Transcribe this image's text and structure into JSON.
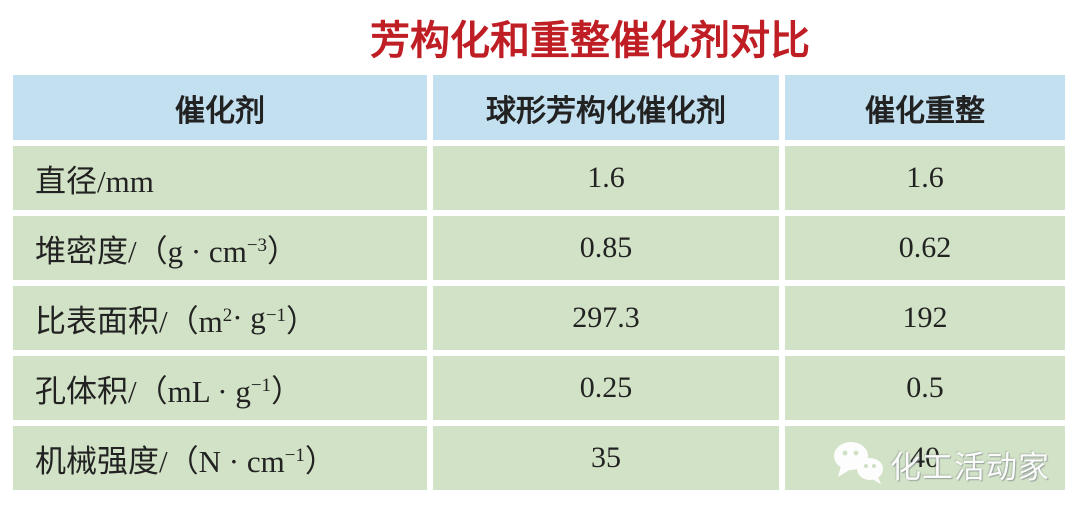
{
  "page": {
    "title": "芳构化和重整催化剂对比",
    "title_color": "#bf1e24",
    "header_bg": "#c3e0f0",
    "row_bg": "#d2e2c6"
  },
  "table": {
    "columns": [
      "催化剂",
      "球形芳构化催化剂",
      "催化重整"
    ],
    "rows": [
      {
        "label": [
          {
            "text": "直径/mm"
          }
        ],
        "values": [
          "1.6",
          "1.6"
        ]
      },
      {
        "label": [
          {
            "text": "堆密度/（g · cm"
          },
          {
            "text": "−3",
            "sup": true
          },
          {
            "text": "）"
          }
        ],
        "values": [
          "0.85",
          "0.62"
        ]
      },
      {
        "label": [
          {
            "text": "比表面积/（m"
          },
          {
            "text": "2",
            "sup": true
          },
          {
            "text": " · g"
          },
          {
            "text": "−1",
            "sup": true
          },
          {
            "text": "）"
          }
        ],
        "values": [
          "297.3",
          "192"
        ]
      },
      {
        "label": [
          {
            "text": "孔体积/（mL · g"
          },
          {
            "text": "−1",
            "sup": true
          },
          {
            "text": "）"
          }
        ],
        "values": [
          "0.25",
          "0.5"
        ]
      },
      {
        "label": [
          {
            "text": "机械强度/（N · cm"
          },
          {
            "text": "−1",
            "sup": true
          },
          {
            "text": "）"
          }
        ],
        "values": [
          "35",
          "40"
        ]
      }
    ]
  },
  "watermark": {
    "icon": "wechat-icon",
    "text": "化工活动家"
  }
}
